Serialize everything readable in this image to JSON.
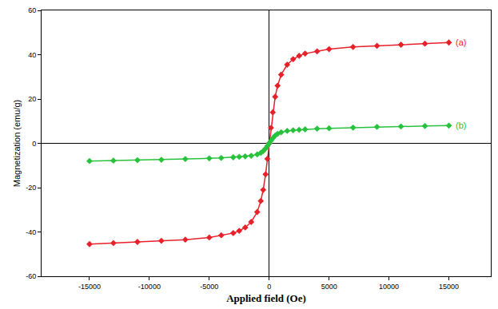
{
  "chart_data": {
    "type": "scatter",
    "x_label": "Applied field (Oe)",
    "y_label": "Magnetization (emu/g)",
    "x": [
      -15000,
      -13000,
      -11000,
      -9000,
      -7000,
      -5000,
      -4000,
      -3000,
      -2500,
      -2000,
      -1500,
      -1000,
      -700,
      -500,
      -300,
      -150,
      0,
      150,
      300,
      500,
      700,
      1000,
      1500,
      2000,
      2500,
      3000,
      4000,
      5000,
      7000,
      9000,
      11000,
      13000,
      15000
    ],
    "series": [
      {
        "name": "(a)",
        "color": "#e8202a",
        "marker": "diamond",
        "values": [
          -45.5,
          -45,
          -44.5,
          -44,
          -43.5,
          -42.5,
          -41.5,
          -40.5,
          -39.5,
          -38,
          -35.5,
          -31,
          -26,
          -21,
          -14,
          -7,
          0,
          7,
          14,
          21,
          26,
          31,
          35.5,
          38,
          39.5,
          40.5,
          41.5,
          42.5,
          43.5,
          44,
          44.5,
          45,
          45.5
        ]
      },
      {
        "name": "(b)",
        "color": "#27c23c",
        "marker": "diamond",
        "values": [
          -8,
          -7.8,
          -7.6,
          -7.4,
          -7.1,
          -6.8,
          -6.6,
          -6.3,
          -6.1,
          -5.9,
          -5.6,
          -5.0,
          -4.3,
          -3.5,
          -2.3,
          -1.2,
          0,
          1.2,
          2.3,
          3.5,
          4.3,
          5.0,
          5.6,
          5.9,
          6.1,
          6.3,
          6.6,
          6.8,
          7.1,
          7.4,
          7.6,
          7.8,
          8
        ]
      }
    ],
    "xlim": [
      -19000,
      18500
    ],
    "xticks": [
      -15000,
      -10000,
      -5000,
      0,
      5000,
      10000,
      15000
    ],
    "ylim": [
      -60,
      60
    ],
    "yticks": [
      -60,
      -40,
      -20,
      0,
      20,
      40,
      60
    ],
    "grid": false
  }
}
